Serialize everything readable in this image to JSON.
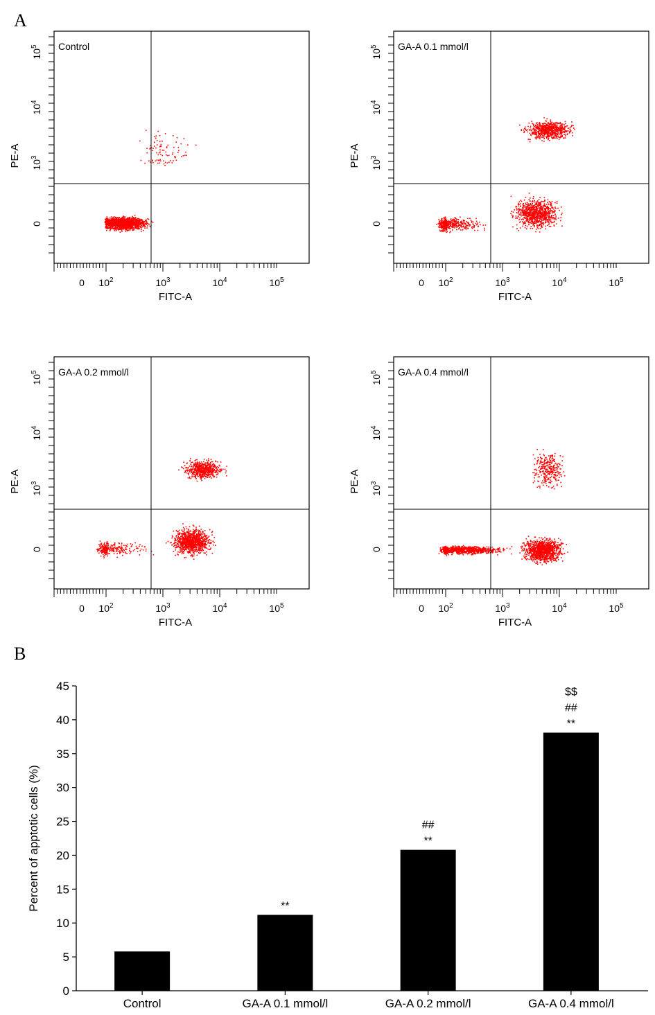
{
  "panel_a_label": "A",
  "panel_b_label": "B",
  "flow_panels": [
    {
      "title": "Control",
      "xlabel": "FITC-A",
      "ylabel": "PE-A"
    },
    {
      "title": "GA-A 0.1 mmol/l",
      "xlabel": "FITC-A",
      "ylabel": "PE-A"
    },
    {
      "title": "GA-A 0.2 mmol/l",
      "xlabel": "FITC-A",
      "ylabel": "PE-A"
    },
    {
      "title": "GA-A 0.4 mmol/l",
      "xlabel": "FITC-A",
      "ylabel": "PE-A"
    }
  ],
  "flow_x_ticks": [
    {
      "base": "0",
      "exp": ""
    },
    {
      "base": "10",
      "exp": "2"
    },
    {
      "base": "10",
      "exp": "3"
    },
    {
      "base": "10",
      "exp": "4"
    },
    {
      "base": "10",
      "exp": "5"
    }
  ],
  "flow_y_ticks": [
    {
      "base": "0",
      "exp": ""
    },
    {
      "base": "10",
      "exp": "3"
    },
    {
      "base": "10",
      "exp": "4"
    },
    {
      "base": "10",
      "exp": "5"
    }
  ],
  "dot_color": "#ff0000",
  "chart_data": [
    {
      "type": "scatter",
      "description_populations_encoded_as_log_decades": true,
      "panels": [
        {
          "title": "Control",
          "clusters": [
            {
              "x": 2.3,
              "y": 0.05,
              "spread_x": 0.35,
              "spread_y": 0.25,
              "n": 1600
            },
            {
              "x": 3.0,
              "y": 3.2,
              "spread_x": 0.45,
              "spread_y": 0.35,
              "n": 90
            }
          ]
        },
        {
          "title": "GA-A 0.1 mmol/l",
          "clusters": [
            {
              "x": 2.0,
              "y": 0.0,
              "spread_x": 0.55,
              "spread_y": 0.25,
              "n": 500
            },
            {
              "x": 3.6,
              "y": 0.5,
              "spread_x": 0.35,
              "spread_y": 0.6,
              "n": 900
            },
            {
              "x": 3.8,
              "y": 3.6,
              "spread_x": 0.35,
              "spread_y": 0.15,
              "n": 700
            }
          ]
        },
        {
          "title": "GA-A 0.2 mmol/l",
          "clusters": [
            {
              "x": 2.0,
              "y": 0.05,
              "spread_x": 0.6,
              "spread_y": 0.25,
              "n": 300
            },
            {
              "x": 3.5,
              "y": 0.4,
              "spread_x": 0.3,
              "spread_y": 0.55,
              "n": 1000
            },
            {
              "x": 3.7,
              "y": 3.35,
              "spread_x": 0.3,
              "spread_y": 0.15,
              "n": 600
            }
          ]
        },
        {
          "title": "GA-A 0.4 mmol/l",
          "clusters": [
            {
              "x": 2.3,
              "y": 0.0,
              "spread_x": 0.6,
              "spread_y": 0.15,
              "n": 900
            },
            {
              "x": 3.7,
              "y": 0.0,
              "spread_x": 0.3,
              "spread_y": 0.45,
              "n": 1100
            },
            {
              "x": 3.8,
              "y": 3.35,
              "spread_x": 0.25,
              "spread_y": 0.3,
              "n": 300
            }
          ]
        }
      ]
    },
    {
      "type": "bar",
      "ylabel": "Percent of apptotic cells (%)",
      "ylim": [
        0,
        45
      ],
      "yticks": [
        0,
        5,
        10,
        15,
        20,
        25,
        30,
        35,
        40,
        45
      ],
      "categories": [
        "Control",
        "GA-A 0.1 mmol/l",
        "GA-A 0.2 mmol/l",
        "GA-A 0.4 mmol/l"
      ],
      "values": [
        5.8,
        11.2,
        20.8,
        38.1
      ],
      "color": "#000000",
      "annotations": [
        [],
        [
          "**"
        ],
        [
          "##",
          "**"
        ],
        [
          "$$",
          "##",
          "**"
        ]
      ]
    }
  ]
}
